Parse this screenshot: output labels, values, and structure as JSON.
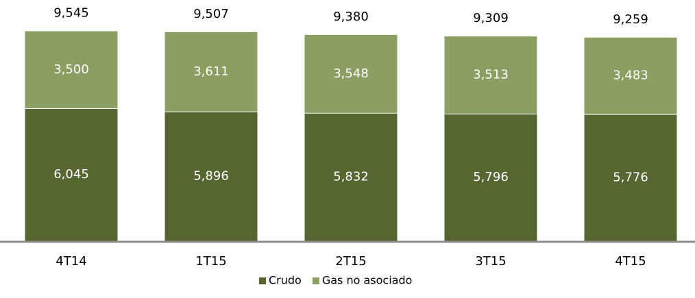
{
  "chart_data": {
    "type": "stacked_bar",
    "categories": [
      "4T14",
      "1T15",
      "2T15",
      "3T15",
      "4T15"
    ],
    "series": [
      {
        "name": "Crudo",
        "color": "#566631",
        "values": [
          6045,
          5896,
          5832,
          5796,
          5776
        ],
        "value_labels": [
          "6,045",
          "5,896",
          "5,832",
          "5,796",
          "5,776"
        ]
      },
      {
        "name": "Gas no asociado",
        "color": "#8c9f63",
        "values": [
          3500,
          3611,
          3548,
          3513,
          3483
        ],
        "value_labels": [
          "3,500",
          "3,611",
          "3,548",
          "3,513",
          "3,483"
        ]
      }
    ],
    "totals": [
      9545,
      9507,
      9380,
      9309,
      9259
    ],
    "total_labels": [
      "9,545",
      "9,507",
      "9,380",
      "9,309",
      "9,259"
    ],
    "ylim": [
      0,
      10000
    ],
    "legend": "bottom"
  }
}
